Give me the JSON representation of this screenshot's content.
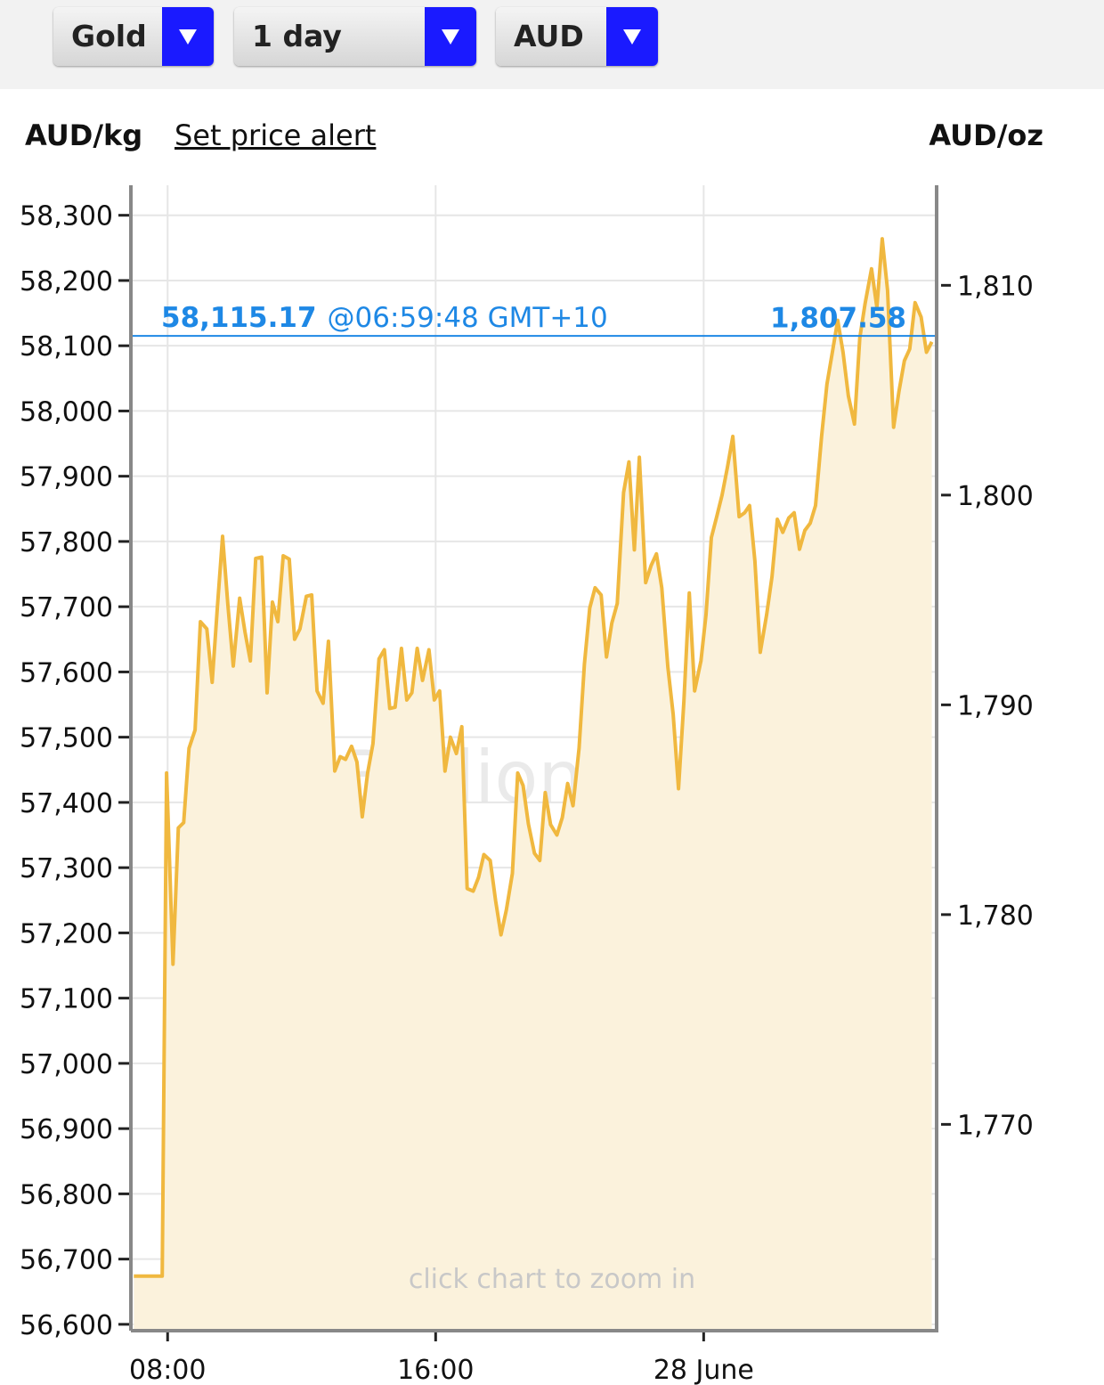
{
  "controls": {
    "metal": "Gold",
    "period": "1 day",
    "currency": "AUD"
  },
  "header": {
    "left_unit": "AUD/kg",
    "alert_link": "Set price alert",
    "right_unit": "AUD/oz"
  },
  "chart_data": {
    "type": "line",
    "area": true,
    "color": "#f0b83f",
    "area_color": "#fbf2dc",
    "grid": true,
    "watermark": "BullionVault",
    "hint": "click chart to zoom in",
    "current": {
      "price": {
        "value": 58115.17,
        "label": "58,115.17"
      },
      "time": "@06:59:48 GMT+10",
      "price_oz": {
        "value": 1807.58,
        "label": "1,807.58"
      },
      "color": "#1e88e5"
    },
    "xlim": [
      6.93,
      30.9
    ],
    "xticks": [
      {
        "value": 8,
        "label": "08:00"
      },
      {
        "value": 16,
        "label": "16:00"
      },
      {
        "value": 24,
        "label": "28 June"
      }
    ],
    "ylim": [
      56593,
      58346
    ],
    "yticks": [
      {
        "value": 56600,
        "label": "56,600"
      },
      {
        "value": 56700,
        "label": "56,700"
      },
      {
        "value": 56800,
        "label": "56,800"
      },
      {
        "value": 56900,
        "label": "56,900"
      },
      {
        "value": 57000,
        "label": "57,000"
      },
      {
        "value": 57100,
        "label": "57,100"
      },
      {
        "value": 57200,
        "label": "57,200"
      },
      {
        "value": 57300,
        "label": "57,300"
      },
      {
        "value": 57400,
        "label": "57,400"
      },
      {
        "value": 57500,
        "label": "57,500"
      },
      {
        "value": 57600,
        "label": "57,600"
      },
      {
        "value": 57700,
        "label": "57,700"
      },
      {
        "value": 57800,
        "label": "57,800"
      },
      {
        "value": 57900,
        "label": "57,900"
      },
      {
        "value": 58000,
        "label": "58,000"
      },
      {
        "value": 58100,
        "label": "58,100"
      },
      {
        "value": 58200,
        "label": "58,200"
      },
      {
        "value": 58300,
        "label": "58,300"
      }
    ],
    "y2lim": [
      1760.25,
      1814.77
    ],
    "y2ticks": [
      {
        "value": 1770,
        "label": "1,770"
      },
      {
        "value": 1780,
        "label": "1,780"
      },
      {
        "value": 1790,
        "label": "1,790"
      },
      {
        "value": 1800,
        "label": "1,800"
      },
      {
        "value": 1810,
        "label": "1,810"
      }
    ],
    "x": [
      6.99,
      7.84,
      7.97,
      8.16,
      8.32,
      8.48,
      8.64,
      8.82,
      8.98,
      9.17,
      9.33,
      9.49,
      9.64,
      9.8,
      9.96,
      10.15,
      10.31,
      10.47,
      10.63,
      10.81,
      10.97,
      11.13,
      11.29,
      11.45,
      11.63,
      11.79,
      11.95,
      12.14,
      12.3,
      12.46,
      12.64,
      12.8,
      12.99,
      13.15,
      13.31,
      13.49,
      13.65,
      13.81,
      13.97,
      14.13,
      14.31,
      14.47,
      14.63,
      14.79,
      14.98,
      15.14,
      15.29,
      15.45,
      15.61,
      15.8,
      15.96,
      16.12,
      16.28,
      16.44,
      16.62,
      16.78,
      16.94,
      17.12,
      17.28,
      17.44,
      17.63,
      17.79,
      17.95,
      18.11,
      18.29,
      18.45,
      18.61,
      18.77,
      18.95,
      19.11,
      19.27,
      19.43,
      19.62,
      19.78,
      19.94,
      20.1,
      20.28,
      20.44,
      20.6,
      20.76,
      20.94,
      21.1,
      21.26,
      21.42,
      21.61,
      21.77,
      21.93,
      22.08,
      22.27,
      22.43,
      22.59,
      22.75,
      22.93,
      23.09,
      23.25,
      23.41,
      23.57,
      23.73,
      23.92,
      24.07,
      24.23,
      24.39,
      24.55,
      24.71,
      24.87,
      25.06,
      25.22,
      25.37,
      25.53,
      25.69,
      25.88,
      26.04,
      26.2,
      26.36,
      26.54,
      26.7,
      26.86,
      27.02,
      27.18,
      27.34,
      27.52,
      27.68,
      27.84,
      28.0,
      28.16,
      28.32,
      28.5,
      28.66,
      28.82,
      29.01,
      29.17,
      29.33,
      29.49,
      29.67,
      29.83,
      29.99,
      30.15,
      30.31,
      30.49,
      30.65,
      30.81
    ],
    "values": [
      56674,
      56674,
      57445,
      57152,
      57361,
      57369,
      57483,
      57511,
      57677,
      57666,
      57584,
      57702,
      57808,
      57702,
      57609,
      57713,
      57661,
      57617,
      57774,
      57776,
      57568,
      57707,
      57677,
      57778,
      57773,
      57650,
      57666,
      57716,
      57718,
      57571,
      57552,
      57647,
      57448,
      57470,
      57466,
      57486,
      57462,
      57378,
      57445,
      57490,
      57620,
      57634,
      57544,
      57546,
      57636,
      57557,
      57568,
      57636,
      57587,
      57634,
      57557,
      57571,
      57448,
      57500,
      57475,
      57516,
      57268,
      57264,
      57285,
      57320,
      57311,
      57249,
      57197,
      57235,
      57291,
      57445,
      57426,
      57367,
      57322,
      57311,
      57415,
      57366,
      57350,
      57377,
      57429,
      57395,
      57483,
      57612,
      57698,
      57729,
      57718,
      57623,
      57675,
      57705,
      57875,
      57922,
      57787,
      57929,
      57737,
      57763,
      57781,
      57729,
      57608,
      57535,
      57421,
      57554,
      57721,
      57571,
      57617,
      57688,
      57806,
      57838,
      57871,
      57914,
      57961,
      57838,
      57844,
      57855,
      57770,
      57630,
      57688,
      57746,
      57834,
      57814,
      57836,
      57844,
      57788,
      57817,
      57828,
      57855,
      57961,
      58041,
      58090,
      58139,
      58090,
      58023,
      57980,
      58112,
      58165,
      58218,
      58159,
      58264,
      58185,
      57975,
      58030,
      58077,
      58095,
      58166,
      58144,
      58090,
      58106
    ]
  }
}
